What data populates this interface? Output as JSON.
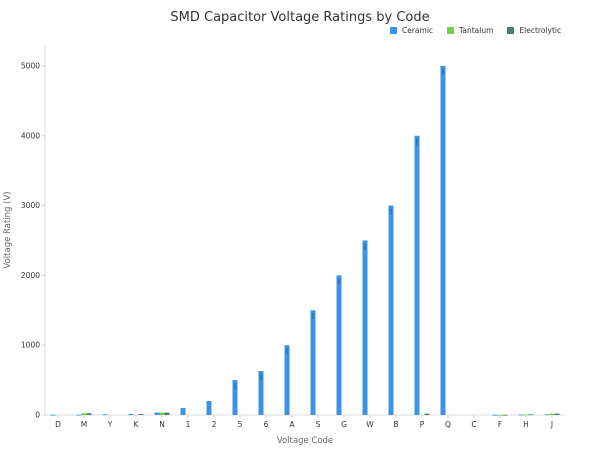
{
  "chart_data": {
    "type": "bar",
    "title": "SMD Capacitor Voltage Ratings by Code",
    "xlabel": "Voltage Code",
    "ylabel": "Voltage Rating (V)",
    "categories": [
      "D",
      "M",
      "Y",
      "K",
      "N",
      "1",
      "2",
      "5",
      "6",
      "A",
      "S",
      "G",
      "W",
      "B",
      "P",
      "Q",
      "C",
      "F",
      "H",
      "J"
    ],
    "ylim": [
      0,
      5300
    ],
    "yticks": [
      0,
      1000,
      2000,
      3000,
      4000,
      5000
    ],
    "grid": false,
    "legend_position": "top-right",
    "series": [
      {
        "name": "Ceramic",
        "color": "#3b93e6",
        "values": [
          2.5,
          4,
          10,
          16,
          35,
          100,
          200,
          500,
          630,
          1000,
          1500,
          2000,
          2500,
          3000,
          4000,
          5000,
          0,
          2.5,
          6.3,
          10
        ]
      },
      {
        "name": "Tantalum",
        "color": "#6fd13b",
        "values": [
          0,
          25,
          0,
          0,
          35,
          0,
          0,
          0,
          0,
          0,
          0,
          0,
          0,
          0,
          0,
          0,
          0,
          2.5,
          6.3,
          20
        ]
      },
      {
        "name": "Electrolytic",
        "color": "#4f7b77",
        "values": [
          0,
          25,
          0,
          16,
          35,
          0,
          0,
          0,
          0,
          0,
          0,
          0,
          0,
          0,
          20,
          0,
          0,
          2.5,
          10,
          20
        ]
      }
    ]
  }
}
